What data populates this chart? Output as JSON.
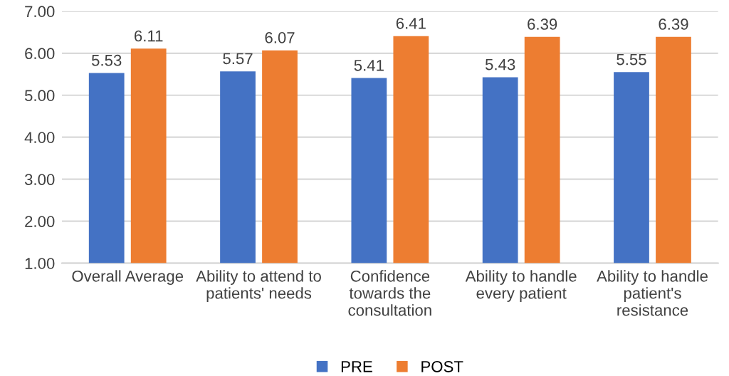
{
  "chart_data": {
    "type": "bar",
    "categories": [
      "Overall Average",
      "Ability to attend to\npatients' needs",
      "Confidence\ntowards the\nconsultation",
      "Ability to handle\nevery patient",
      "Ability to handle\npatient's\nresistance"
    ],
    "series": [
      {
        "name": "PRE",
        "color": "#4472c4",
        "values": [
          5.53,
          5.57,
          5.41,
          5.43,
          5.55
        ]
      },
      {
        "name": "POST",
        "color": "#ed7d31",
        "values": [
          6.11,
          6.07,
          6.41,
          6.39,
          6.39
        ]
      }
    ],
    "ylim": [
      1,
      7
    ],
    "yticks": [
      {
        "value": 1,
        "label": "1.00"
      },
      {
        "value": 2,
        "label": "2.00"
      },
      {
        "value": 3,
        "label": "3.00"
      },
      {
        "value": 4,
        "label": "4.00"
      },
      {
        "value": 5,
        "label": "5.00"
      },
      {
        "value": 6,
        "label": "6.00"
      },
      {
        "value": 7,
        "label": "7.00"
      }
    ],
    "grid": "y",
    "legend": "bottom",
    "data_labels": true
  }
}
